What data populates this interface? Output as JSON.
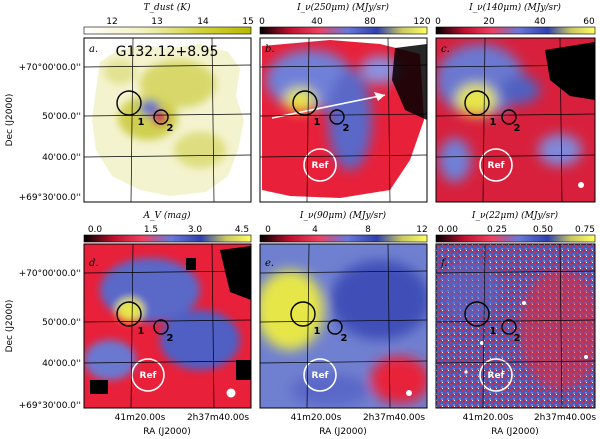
{
  "source_name": "G132.12+8.95",
  "axes": {
    "dec_label": "Dec (J2000)",
    "ra_label": "RA (J2000)",
    "dec_ticks": [
      "+70°00'00.0''",
      "50'00.0''",
      "40'00.0''",
      "+69°30'00.0''"
    ],
    "ra_ticks": [
      "41m20.00s",
      "2h37m40.00s"
    ]
  },
  "markers": {
    "clump1": "1",
    "clump2": "2",
    "ref": "Ref"
  },
  "colors": {
    "red": "#e8203a",
    "blue": "#4f5fc4",
    "yellow": "#e6e64a",
    "black": "#000000",
    "white": "#ffffff"
  },
  "chart_data": [
    {
      "panel": "a.",
      "type": "heatmap",
      "title": "T_dust (K)",
      "colorbar_ticks": [
        "12",
        "13",
        "14",
        "15"
      ],
      "range": [
        11.3,
        15
      ]
    },
    {
      "panel": "b.",
      "type": "heatmap",
      "title": "I_ν(250μm) (MJy/sr)",
      "colorbar_ticks": [
        "0",
        "40",
        "80",
        "120"
      ],
      "range": [
        0,
        120
      ]
    },
    {
      "panel": "c.",
      "type": "heatmap",
      "title": "I_ν(140μm) (MJy/sr)",
      "colorbar_ticks": [
        "0",
        "20",
        "40",
        "60"
      ],
      "range": [
        0,
        63
      ]
    },
    {
      "panel": "d.",
      "type": "heatmap",
      "title": "A_V (mag)",
      "colorbar_ticks": [
        "0.0",
        "1.5",
        "3.0",
        "4.5"
      ],
      "range": [
        0,
        4.5
      ]
    },
    {
      "panel": "e.",
      "type": "heatmap",
      "title": "I_ν(90μm) (MJy/sr)",
      "colorbar_ticks": [
        "0",
        "4",
        "8",
        "12"
      ],
      "range": [
        0,
        12
      ]
    },
    {
      "panel": "f.",
      "type": "heatmap",
      "title": "I_ν(22μm) (MJy/sr)",
      "colorbar_ticks": [
        "0.00",
        "0.25",
        "0.50",
        "0.75"
      ],
      "range": [
        0,
        0.8
      ]
    }
  ]
}
